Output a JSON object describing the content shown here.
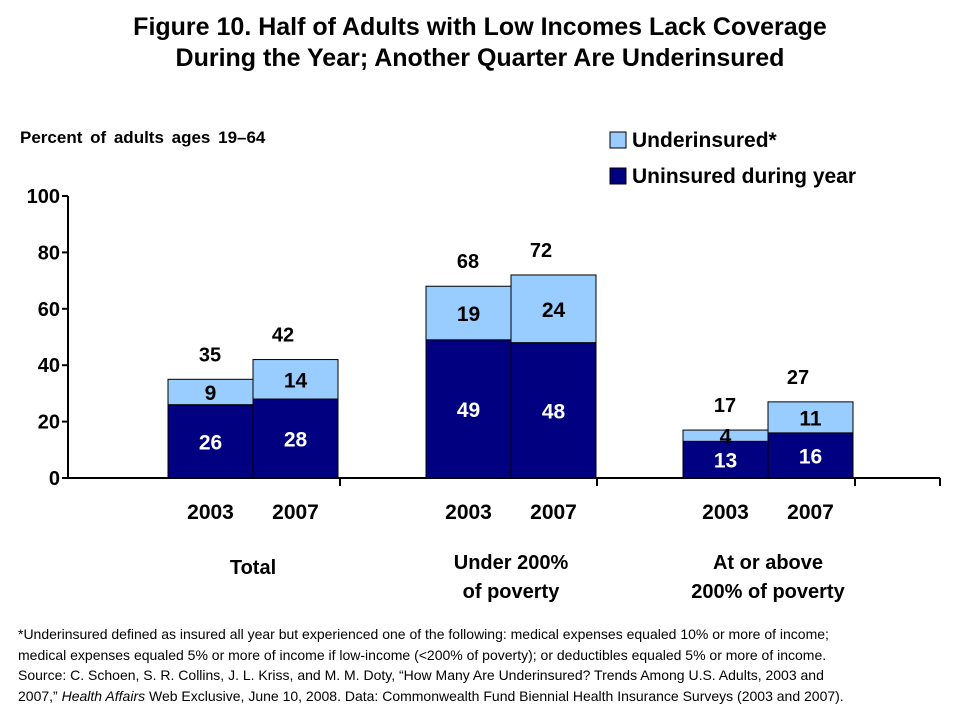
{
  "title_line1": "Figure 10. Half of Adults with Low Incomes Lack Coverage",
  "title_line2": "During the Year; Another Quarter Are Underinsured",
  "subtitle": "Percent of adults ages 19–64",
  "footnote": {
    "line1": "*Underinsured defined as insured all year but experienced one of the following: medical expenses equaled 10% or more of income;",
    "line2": "medical expenses equaled 5% or more of income if low-income (<200% of poverty); or deductibles equaled 5% or more of income.",
    "line3": "Source: C. Schoen, S. R. Collins, J. L. Kriss, and M. M. Doty, “How Many Are Underinsured? Trends Among U.S. Adults, 2003 and",
    "line4_a": "2007,” ",
    "line4_italic": "Health Affairs",
    "line4_b": " Web Exclusive, June 10, 2008. Data: Commonwealth Fund Biennial Health Insurance Surveys (2003 and 2007)."
  },
  "chart_data": {
    "type": "bar",
    "stacked": true,
    "ylim": [
      0,
      100
    ],
    "yticks": [
      "0",
      "20",
      "40",
      "60",
      "80",
      "100"
    ],
    "legend_position": "top-right",
    "colors": {
      "uninsured": "#000080",
      "underinsured": "#99ccff"
    },
    "legend": [
      {
        "key": "underinsured",
        "label": "Underinsured*"
      },
      {
        "key": "uninsured",
        "label": "Uninsured during year"
      }
    ],
    "groups": [
      {
        "label_lines": [
          "Total"
        ]
      },
      {
        "label_lines": [
          "Under 200%",
          "of poverty"
        ]
      },
      {
        "label_lines": [
          "At or above",
          "200% of poverty"
        ]
      }
    ],
    "bars": [
      {
        "group": 0,
        "year": "2003",
        "uninsured": 26,
        "underinsured": 9,
        "total": 35
      },
      {
        "group": 0,
        "year": "2007",
        "uninsured": 28,
        "underinsured": 14,
        "total": 42
      },
      {
        "group": 1,
        "year": "2003",
        "uninsured": 49,
        "underinsured": 19,
        "total": 68
      },
      {
        "group": 1,
        "year": "2007",
        "uninsured": 48,
        "underinsured": 24,
        "total": 72
      },
      {
        "group": 2,
        "year": "2003",
        "uninsured": 13,
        "underinsured": 4,
        "total": 17
      },
      {
        "group": 2,
        "year": "2007",
        "uninsured": 16,
        "underinsured": 11,
        "total": 27
      }
    ]
  }
}
